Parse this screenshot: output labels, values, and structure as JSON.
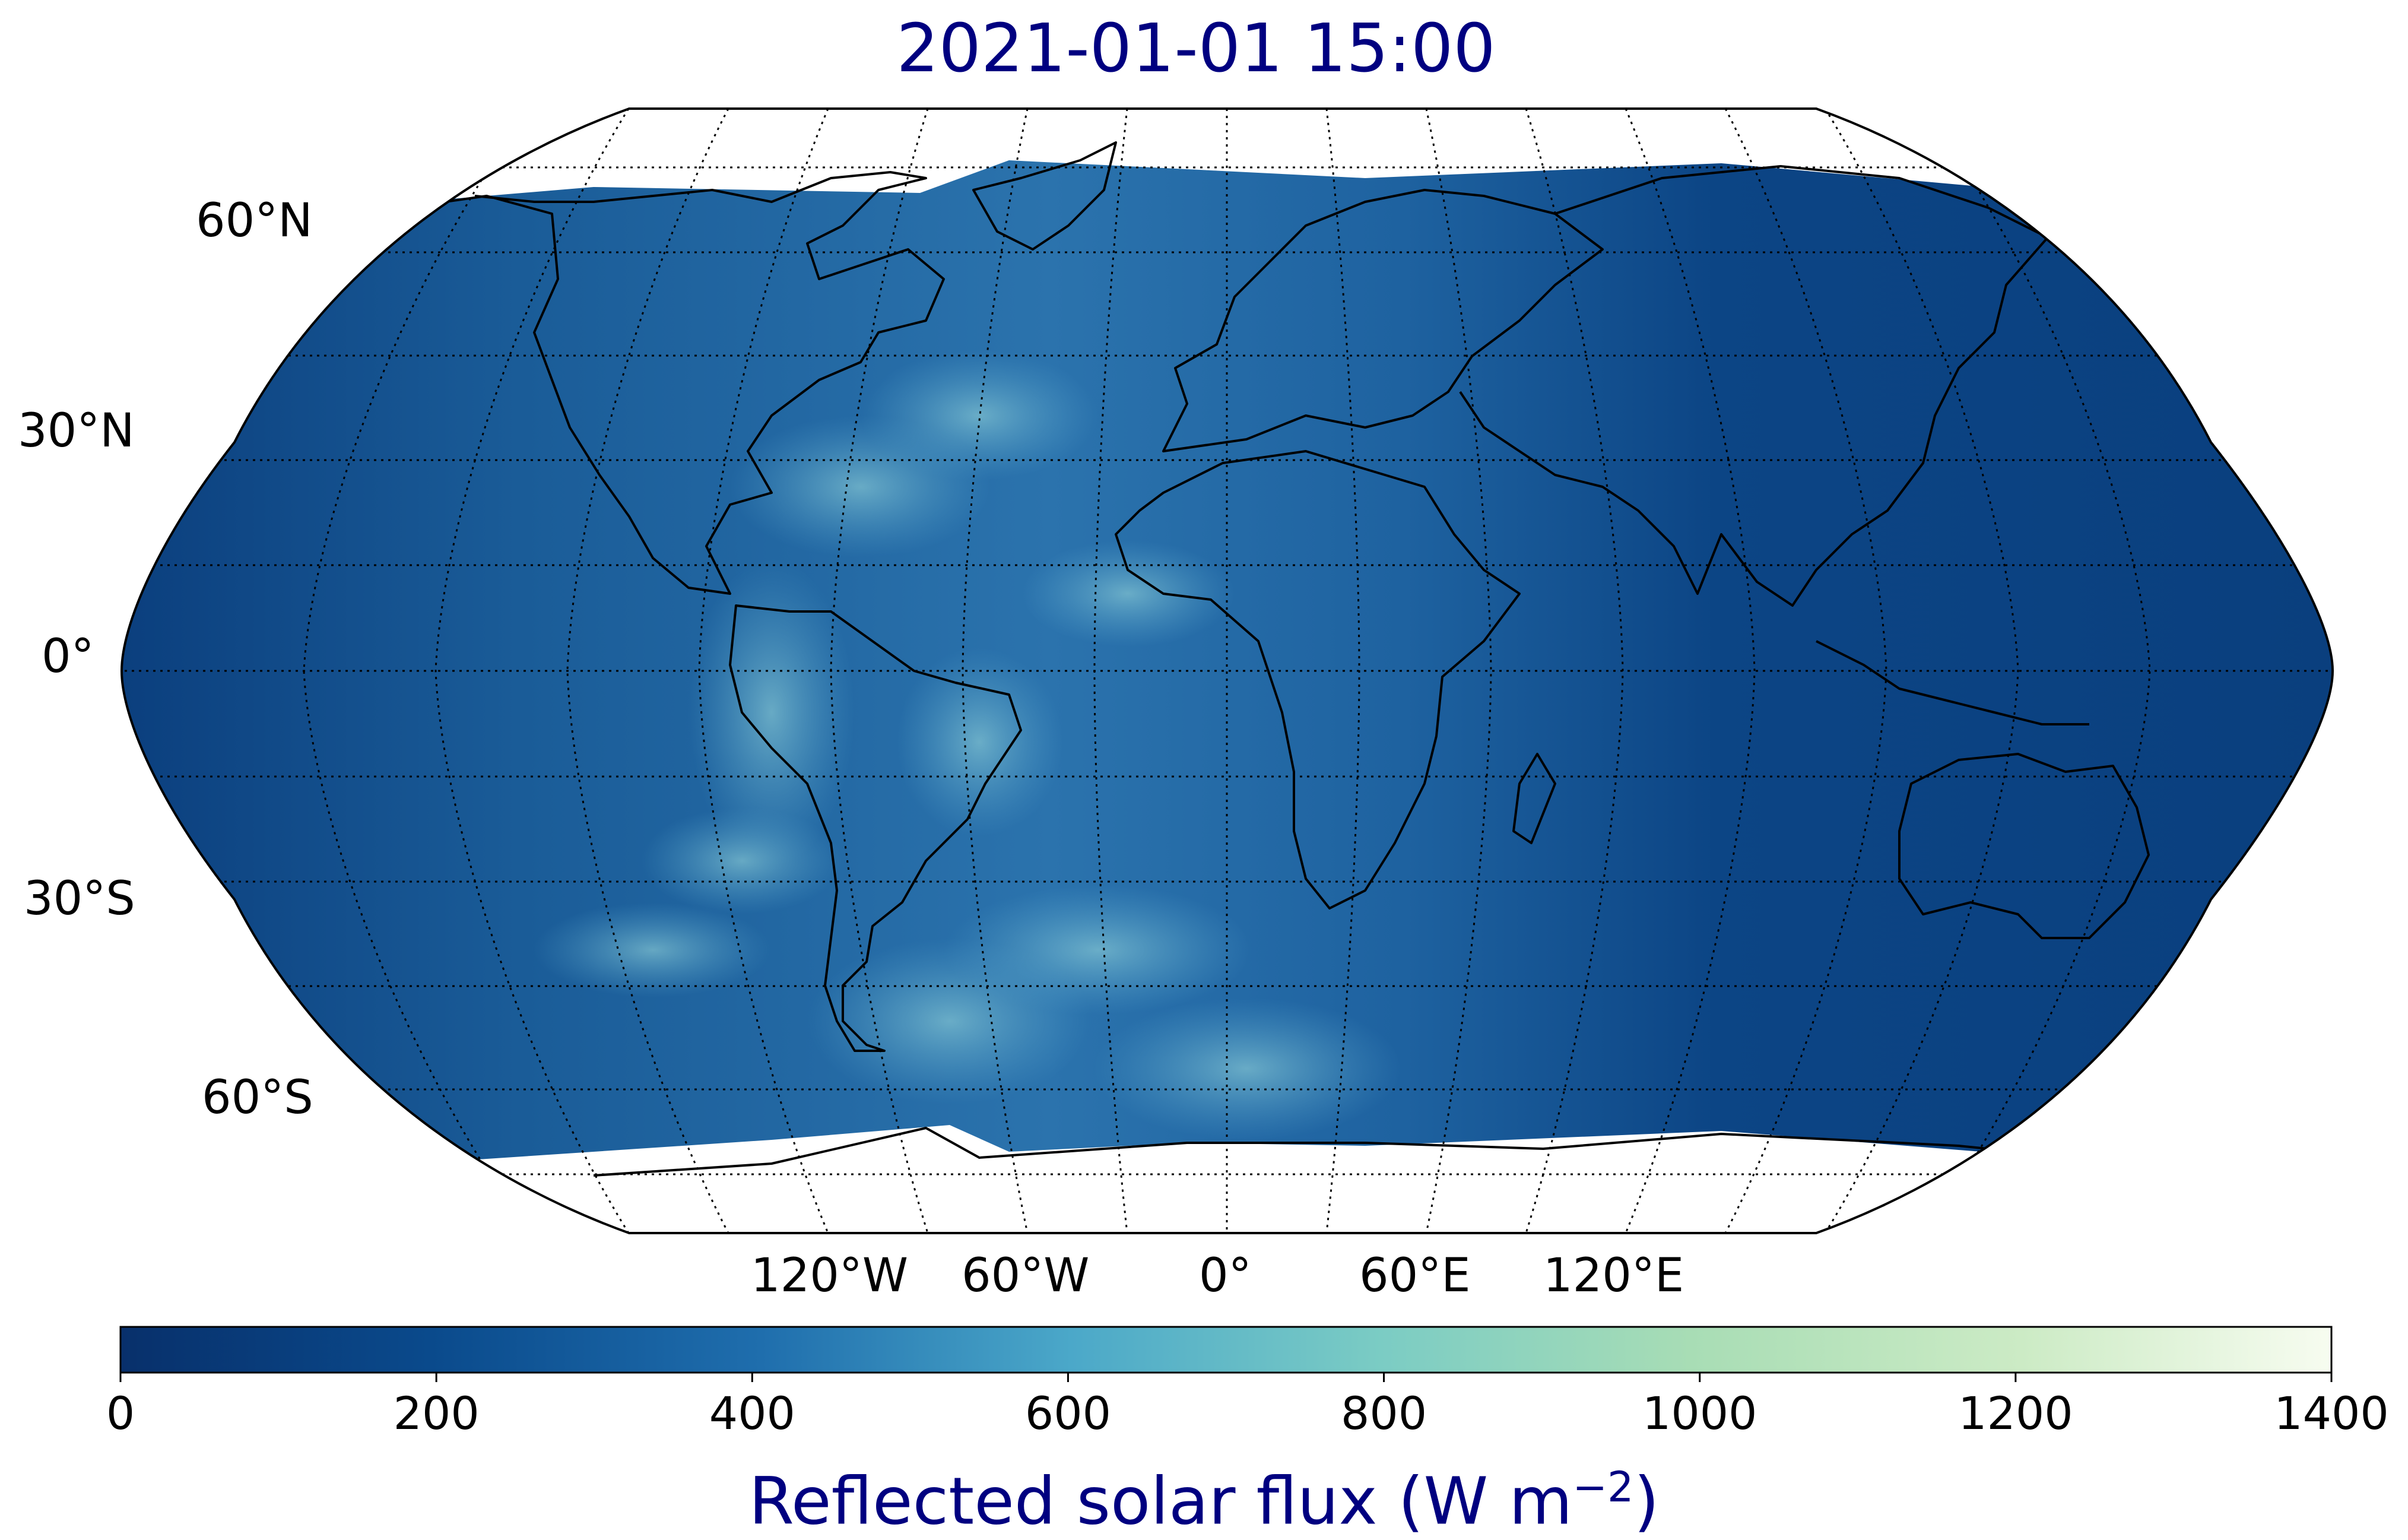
{
  "title": "2021-01-01 15:00",
  "map": {
    "projection": "Robinson",
    "central_longitude": 0,
    "gridline_style": "dotted black",
    "coastlines": "black",
    "lat_labels": [
      "60°N",
      "30°N",
      "0°",
      "30°S",
      "60°S"
    ],
    "lon_labels": [
      "120°W",
      "60°W",
      "0°",
      "60°E",
      "120°E"
    ]
  },
  "colorbar": {
    "colormap": "GnBu_r",
    "vmin": 0,
    "vmax": 1400,
    "ticks": [
      "0",
      "200",
      "400",
      "600",
      "800",
      "1000",
      "1200",
      "1400"
    ],
    "label_text": "Reflected solar flux (W m",
    "label_exponent": "−2",
    "label_close": ")",
    "label_color": "#000080",
    "color_stops": [
      "#08306b",
      "#0a4a8c",
      "#1f6ead",
      "#4ba8c9",
      "#7bccc4",
      "#a8ddb5",
      "#ccebc5",
      "#f7fcf0"
    ]
  }
}
